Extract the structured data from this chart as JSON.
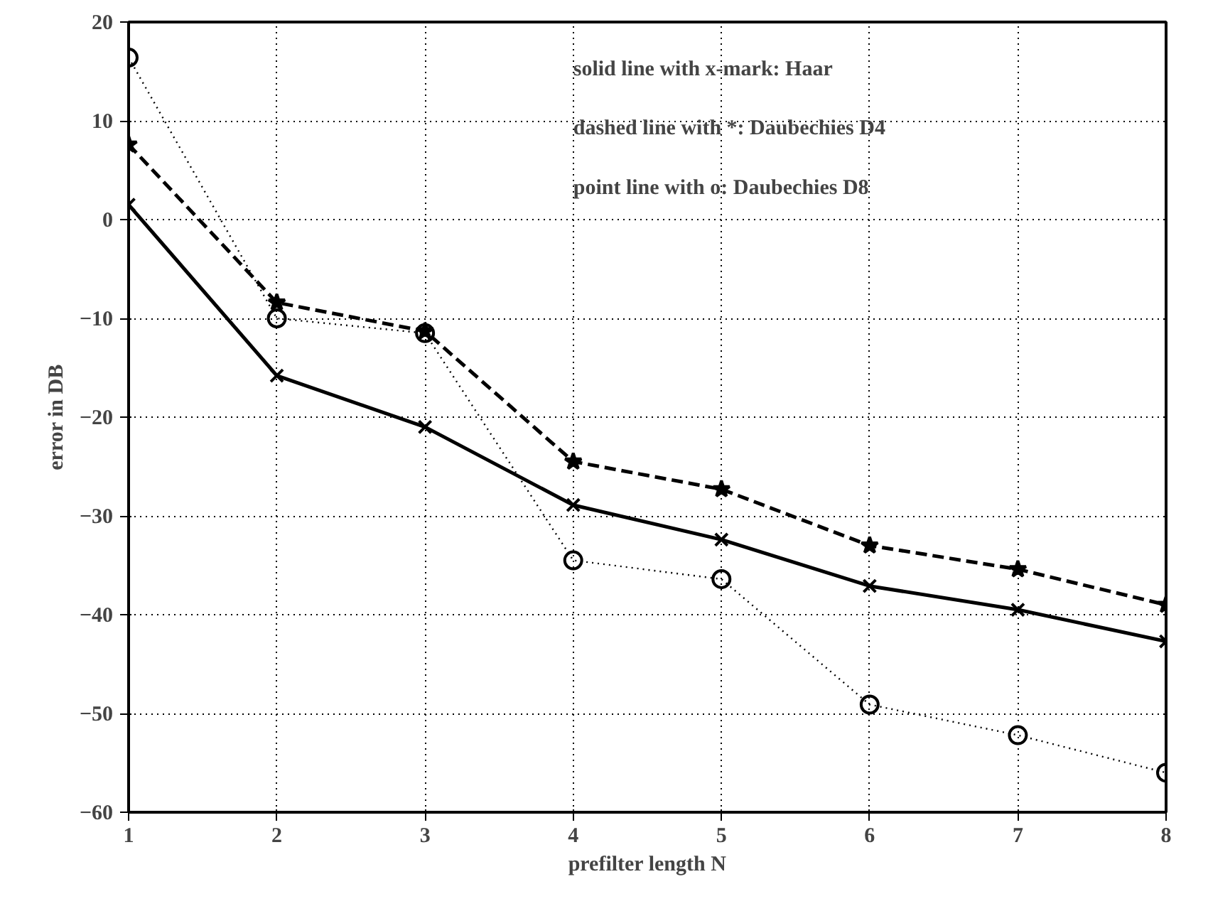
{
  "chart_data": {
    "type": "line",
    "xlabel": "prefilter length N",
    "ylabel": "error in DB",
    "x": [
      1,
      2,
      3,
      4,
      5,
      6,
      7,
      8
    ],
    "xlim": [
      1,
      8
    ],
    "xticks": [
      1,
      2,
      3,
      4,
      5,
      6,
      7,
      8
    ],
    "ylim": [
      -60,
      20
    ],
    "yticks": [
      -60,
      -50,
      -40,
      -30,
      -20,
      -10,
      0,
      10,
      20
    ],
    "grid": true,
    "series": [
      {
        "color": "#000000",
        "marker": "cross",
        "line_style": "solid",
        "values": [
          1.5,
          -15.8,
          -21,
          -28.9,
          -32.4,
          -37.1,
          -39.5,
          -42.7
        ]
      },
      {
        "color": "#000000",
        "marker": "star",
        "line_style": "dashed",
        "values": [
          7.6,
          -8.4,
          -11.3,
          -24.5,
          -27.3,
          -33,
          -35.4,
          -39
        ]
      },
      {
        "color": "#000000",
        "marker": "circle",
        "line_style": "dotted",
        "values": [
          16.4,
          -10,
          -11.5,
          -34.5,
          -36.4,
          -49.1,
          -52.2,
          -56
        ]
      }
    ],
    "annotations": [
      "solid line with x-mark: Haar",
      "dashed line with *: Daubechies D4",
      "point line with o: Daubechies D8"
    ]
  }
}
